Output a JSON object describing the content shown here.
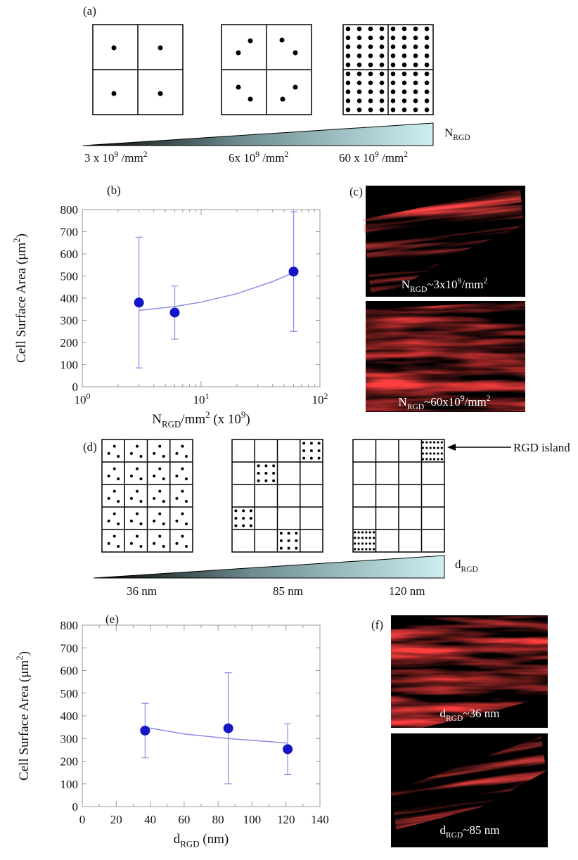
{
  "chart_data": [
    {
      "type": "scatter",
      "title": "(b)",
      "xlabel": [
        {
          "text": "N"
        },
        {
          "text": "RGD",
          "style": "sub"
        },
        {
          "text": "/mm"
        },
        {
          "text": "2",
          "style": "sup"
        },
        {
          "text": " (x 10"
        },
        {
          "text": "9",
          "style": "sup"
        },
        {
          "text": ")"
        }
      ],
      "ylabel": [
        {
          "text": "Cell Surface Area (μm"
        },
        {
          "text": "2",
          "style": "sup"
        },
        {
          "text": ")"
        }
      ],
      "xscale": "log",
      "xlim": [
        1,
        100
      ],
      "xticks": [
        {
          "value": 1,
          "label": "10",
          "exponent": "0"
        },
        {
          "value": 10,
          "label": "10",
          "exponent": "1"
        },
        {
          "value": 100,
          "label": "10",
          "exponent": "2"
        }
      ],
      "ylim": [
        0,
        800
      ],
      "yticks": [
        0,
        100,
        200,
        300,
        400,
        500,
        600,
        700,
        800
      ],
      "x": [
        3,
        6,
        60
      ],
      "values": [
        380,
        335,
        520
      ],
      "errors": [
        295,
        120,
        270
      ],
      "color": "#1414c8",
      "fit": {
        "x": [
          3,
          6,
          10,
          20,
          40,
          60
        ],
        "values": [
          345,
          362,
          382,
          420,
          475,
          515
        ],
        "color": "#8c8ce6"
      }
    },
    {
      "type": "scatter",
      "title": "(e)",
      "xlabel": [
        {
          "text": "d"
        },
        {
          "text": "RGD",
          "style": "sub"
        },
        {
          "text": " (nm)"
        }
      ],
      "ylabel": [
        {
          "text": "Cell Surface Area (μm"
        },
        {
          "text": "2",
          "style": "sup"
        },
        {
          "text": ")"
        }
      ],
      "xscale": "linear",
      "xlim": [
        0,
        140
      ],
      "xticks": [
        0,
        20,
        40,
        60,
        80,
        100,
        120,
        140
      ],
      "ylim": [
        0,
        800
      ],
      "yticks": [
        0,
        100,
        200,
        300,
        400,
        500,
        600,
        700,
        800
      ],
      "x": [
        37,
        86,
        121
      ],
      "values": [
        335,
        345,
        253
      ],
      "errors": [
        120,
        245,
        112
      ],
      "color": "#1414c8",
      "fit": {
        "x": [
          37,
          60,
          86,
          121
        ],
        "values": [
          350,
          320,
          300,
          280
        ],
        "color": "#8c8ce6"
      }
    }
  ],
  "panel_a": {
    "label": "(a)",
    "gradient_label": [
      {
        "text": "N"
      },
      {
        "text": "RGD",
        "style": "sub"
      }
    ],
    "densities": [
      [
        {
          "text": "3 x 10"
        },
        {
          "text": "9",
          "style": "sup"
        },
        {
          "text": " /mm"
        },
        {
          "text": "2",
          "style": "sup"
        }
      ],
      [
        {
          "text": "6x 10"
        },
        {
          "text": "9",
          "style": "sup"
        },
        {
          "text": " /mm"
        },
        {
          "text": "2",
          "style": "sup"
        }
      ],
      [
        {
          "text": "60 x 10"
        },
        {
          "text": "9",
          "style": "sup"
        },
        {
          "text": " /mm"
        },
        {
          "text": "2",
          "style": "sup"
        }
      ]
    ]
  },
  "panel_c": {
    "label": "(c)",
    "captions": [
      [
        {
          "text": "N"
        },
        {
          "text": "RGD",
          "style": "sub"
        },
        {
          "text": "~3x10"
        },
        {
          "text": "9",
          "style": "sup"
        },
        {
          "text": "/mm"
        },
        {
          "text": "2",
          "style": "sup"
        }
      ],
      [
        {
          "text": "N"
        },
        {
          "text": "RGD",
          "style": "sub"
        },
        {
          "text": "~60x10"
        },
        {
          "text": "9",
          "style": "sup"
        },
        {
          "text": "/mm"
        },
        {
          "text": "2",
          "style": "sup"
        }
      ]
    ]
  },
  "panel_d": {
    "label": "(d)",
    "gradient_label": [
      {
        "text": "d"
      },
      {
        "text": "RGD",
        "style": "sub"
      }
    ],
    "spacings": [
      "36 nm",
      "85 nm",
      "120 nm"
    ],
    "island_label": "RGD island"
  },
  "panel_f": {
    "label": "(f)",
    "captions": [
      [
        {
          "text": "d"
        },
        {
          "text": "RGD",
          "style": "sub"
        },
        {
          "text": "~36 nm"
        }
      ],
      [
        {
          "text": "d"
        },
        {
          "text": "RGD",
          "style": "sub"
        },
        {
          "text": "~85 nm"
        }
      ]
    ]
  }
}
